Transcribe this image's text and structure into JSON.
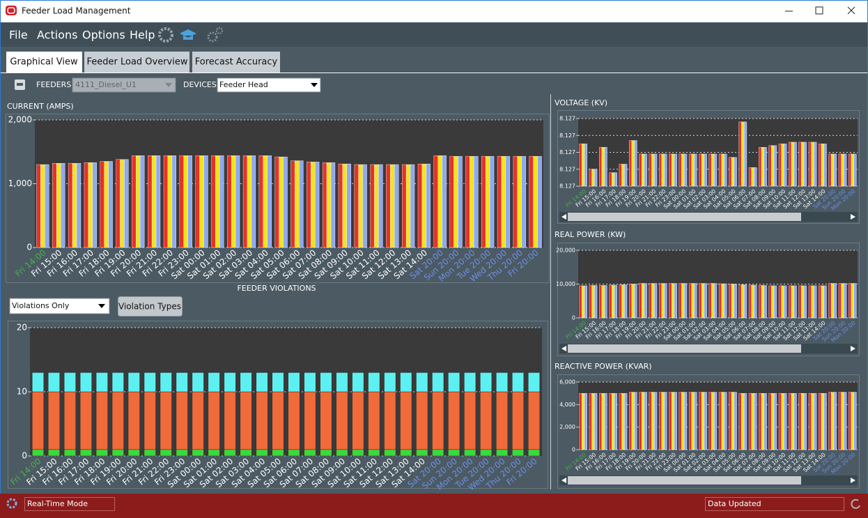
{
  "window": {
    "title": "Feeder Load Management"
  },
  "menu": [
    "File",
    "Actions",
    "Options",
    "Help"
  ],
  "tabs": [
    "Graphical View",
    "Feeder Load Overview",
    "Forecast Accuracy"
  ],
  "toolbar": {
    "feeders_label": "FEEDERS:",
    "feeder": "4111_Diesel_U1",
    "devices_label": "DEVICES:",
    "device": "Feeder Head"
  },
  "violations": {
    "filter": "Violations Only",
    "button": "Violation Types"
  },
  "status": {
    "mode": "Real-Time Mode",
    "message": "Data Updated"
  },
  "chart_data": [
    {
      "type": "bar",
      "title": "CURRENT (AMPS)",
      "grid": true,
      "categories": [
        "Fri 14:00",
        "Fri 15:00",
        "Fri 16:00",
        "Fri 17:00",
        "Fri 18:00",
        "Fri 19:00",
        "Fri 20:00",
        "Fri 21:00",
        "Fri 22:00",
        "Fri 23:00",
        "Sat 00:00",
        "Sat 01:00",
        "Sat 02:00",
        "Sat 03:00",
        "Sat 04:00",
        "Sat 05:00",
        "Sat 06:00",
        "Sat 07:00",
        "Sat 08:00",
        "Sat 09:00",
        "Sat 10:00",
        "Sat 11:00",
        "Sat 12:00",
        "Sat 13:00",
        "Sat 14:00",
        "Sat 20:00",
        "Sun 20:00",
        "Mon 20:00",
        "Tue 20:00",
        "Wed 20:00",
        "Thu 20:00",
        "Fri 20:00"
      ],
      "label_colors": [
        "#4caf50",
        "#fff",
        "#fff",
        "#fff",
        "#fff",
        "#fff",
        "#fff",
        "#fff",
        "#fff",
        "#fff",
        "#fff",
        "#fff",
        "#fff",
        "#fff",
        "#fff",
        "#fff",
        "#fff",
        "#fff",
        "#fff",
        "#fff",
        "#fff",
        "#fff",
        "#fff",
        "#fff",
        "#fff",
        "#6f8fe8",
        "#6f8fe8",
        "#6f8fe8",
        "#6f8fe8",
        "#6f8fe8",
        "#6f8fe8",
        "#6f8fe8"
      ],
      "ylim": [
        0,
        2000
      ],
      "yticks": [
        0,
        {
          "value": 1000,
          "label": "1,000"
        },
        {
          "value": 2000,
          "label": "2,000"
        }
      ],
      "series": [
        {
          "color": "#e8302a",
          "values": [
            1300,
            1320,
            1320,
            1330,
            1350,
            1380,
            1440,
            1440,
            1440,
            1440,
            1440,
            1440,
            1440,
            1440,
            1440,
            1420,
            1360,
            1340,
            1330,
            1310,
            1300,
            1300,
            1300,
            1300,
            1310,
            1440,
            1430,
            1430,
            1430,
            1430,
            1430,
            1430
          ]
        },
        {
          "color": "#f2e51c",
          "values": [
            1300,
            1320,
            1320,
            1330,
            1350,
            1380,
            1440,
            1440,
            1440,
            1440,
            1440,
            1440,
            1440,
            1440,
            1440,
            1420,
            1360,
            1340,
            1330,
            1310,
            1300,
            1300,
            1300,
            1300,
            1310,
            1440,
            1430,
            1430,
            1430,
            1430,
            1430,
            1430
          ]
        },
        {
          "color": "#8fa8f0",
          "values": [
            1300,
            1320,
            1320,
            1330,
            1350,
            1380,
            1440,
            1440,
            1440,
            1440,
            1440,
            1440,
            1440,
            1440,
            1440,
            1420,
            1360,
            1340,
            1330,
            1310,
            1300,
            1300,
            1300,
            1300,
            1310,
            1440,
            1430,
            1430,
            1430,
            1430,
            1430,
            1430
          ]
        }
      ]
    },
    {
      "type": "bar",
      "stacked": true,
      "title": "FEEDER VIOLATIONS",
      "grid": true,
      "categories": [
        "Fri 14:00",
        "Fri 15:00",
        "Fri 16:00",
        "Fri 17:00",
        "Fri 18:00",
        "Fri 19:00",
        "Fri 20:00",
        "Fri 21:00",
        "Fri 22:00",
        "Fri 23:00",
        "Sat 00:00",
        "Sat 01:00",
        "Sat 02:00",
        "Sat 03:00",
        "Sat 04:00",
        "Sat 05:00",
        "Sat 06:00",
        "Sat 07:00",
        "Sat 08:00",
        "Sat 09:00",
        "Sat 10:00",
        "Sat 11:00",
        "Sat 12:00",
        "Sat 13:00",
        "Sat 14:00",
        "Sat 20:00",
        "Sun 20:00",
        "Mon 20:00",
        "Tue 20:00",
        "Wed 20:00",
        "Thu 20:00",
        "Fri 20:00"
      ],
      "label_colors": [
        "#4caf50",
        "#fff",
        "#fff",
        "#fff",
        "#fff",
        "#fff",
        "#fff",
        "#fff",
        "#fff",
        "#fff",
        "#fff",
        "#fff",
        "#fff",
        "#fff",
        "#fff",
        "#fff",
        "#fff",
        "#fff",
        "#fff",
        "#fff",
        "#fff",
        "#fff",
        "#fff",
        "#fff",
        "#fff",
        "#6f8fe8",
        "#6f8fe8",
        "#6f8fe8",
        "#6f8fe8",
        "#6f8fe8",
        "#6f8fe8",
        "#6f8fe8"
      ],
      "ylim": [
        0,
        20
      ],
      "yticks": [
        0,
        10,
        20
      ],
      "series": [
        {
          "color": "#3cd83c",
          "values": [
            1,
            1,
            1,
            1,
            1,
            1,
            1,
            1,
            1,
            1,
            1,
            1,
            1,
            1,
            1,
            1,
            1,
            1,
            1,
            1,
            1,
            1,
            1,
            1,
            1,
            1,
            1,
            1,
            1,
            1,
            1,
            1
          ]
        },
        {
          "color": "#f06a3a",
          "values": [
            9,
            9,
            9,
            9,
            9,
            9,
            9,
            9,
            9,
            9,
            9,
            9,
            9,
            9,
            9,
            9,
            9,
            9,
            9,
            9,
            9,
            9,
            9,
            9,
            9,
            9,
            9,
            9,
            9,
            9,
            9,
            9
          ]
        },
        {
          "color": "#5ef0f0",
          "values": [
            3,
            3,
            3,
            3,
            3,
            3,
            3,
            3,
            3,
            3,
            3,
            3,
            3,
            3,
            3,
            3,
            3,
            3,
            3,
            3,
            3,
            3,
            3,
            3,
            3,
            3,
            3,
            3,
            3,
            3,
            3,
            3
          ]
        }
      ]
    },
    {
      "type": "bar",
      "title": "VOLTAGE (KV)",
      "grid": true,
      "categories": [
        "Fri 14:00",
        "Fri 15:00",
        "Fri 16:00",
        "Fri 17:00",
        "Fri 18:00",
        "Fri 19:00",
        "Fri 20:00",
        "Fri 21:00",
        "Fri 22:00",
        "Fri 23:00",
        "Sat 00:00",
        "Sat 01:00",
        "Sat 02:00",
        "Sat 03:00",
        "Sat 04:00",
        "Sat 05:00",
        "Sat 06:00",
        "Sat 07:00",
        "Sat 08:00",
        "Sat 09:00",
        "Sat 10:00",
        "Sat 11:00",
        "Sat 12:00",
        "Sat 13:00",
        "Sat 14:00",
        "Sat 20:00",
        "Sun 20:00",
        "Mon 20:00"
      ],
      "label_colors": [
        "#4caf50",
        "#fff",
        "#fff",
        "#fff",
        "#fff",
        "#fff",
        "#fff",
        "#fff",
        "#fff",
        "#fff",
        "#fff",
        "#fff",
        "#fff",
        "#fff",
        "#fff",
        "#fff",
        "#fff",
        "#fff",
        "#fff",
        "#fff",
        "#fff",
        "#fff",
        "#fff",
        "#fff",
        "#fff",
        "#6f8fe8",
        "#6f8fe8",
        "#6f8fe8"
      ],
      "ylim": [
        8.1268,
        8.1272
      ],
      "yticks": [
        {
          "value": 8.1268,
          "label": "8.127"
        },
        {
          "value": 8.1269,
          "label": "8.127"
        },
        8.127,
        {
          "value": 8.1271,
          "label": "8.127"
        },
        {
          "value": 8.1272,
          "label": "8.127"
        }
      ],
      "series": [
        {
          "color": "#e8302a",
          "values": [
            8.12705,
            8.1269,
            8.12703,
            8.12688,
            8.12693,
            8.12707,
            8.12699,
            8.12699,
            8.12699,
            8.12699,
            8.12699,
            8.12699,
            8.12699,
            8.12699,
            8.12699,
            8.12697,
            8.12718,
            8.12691,
            8.12703,
            8.12704,
            8.12705,
            8.12706,
            8.12706,
            8.12706,
            8.12705,
            8.12699,
            8.12699,
            8.12699
          ]
        },
        {
          "color": "#f2e51c",
          "values": [
            8.12705,
            8.1269,
            8.12703,
            8.12688,
            8.12693,
            8.12707,
            8.12699,
            8.12699,
            8.12699,
            8.12699,
            8.12699,
            8.12699,
            8.12699,
            8.12699,
            8.12699,
            8.12697,
            8.12718,
            8.12691,
            8.12703,
            8.12704,
            8.12705,
            8.12706,
            8.12706,
            8.12706,
            8.12705,
            8.12699,
            8.12699,
            8.12699
          ]
        },
        {
          "color": "#8fa8f0",
          "values": [
            8.12705,
            8.1269,
            8.12703,
            8.12688,
            8.12693,
            8.12707,
            8.12699,
            8.12699,
            8.12699,
            8.12699,
            8.12699,
            8.12699,
            8.12699,
            8.12699,
            8.12699,
            8.12697,
            8.12718,
            8.12691,
            8.12703,
            8.12704,
            8.12705,
            8.12706,
            8.12706,
            8.12706,
            8.12705,
            8.12699,
            8.12699,
            8.12699
          ]
        }
      ]
    },
    {
      "type": "bar",
      "title": "REAL POWER (KW)",
      "grid": true,
      "categories": [
        "Fri 14:00",
        "Fri 15:00",
        "Fri 16:00",
        "Fri 17:00",
        "Fri 18:00",
        "Fri 19:00",
        "Fri 20:00",
        "Fri 21:00",
        "Fri 22:00",
        "Fri 23:00",
        "Sat 00:00",
        "Sat 01:00",
        "Sat 02:00",
        "Sat 03:00",
        "Sat 04:00",
        "Sat 05:00",
        "Sat 06:00",
        "Sat 07:00",
        "Sat 08:00",
        "Sat 09:00",
        "Sat 10:00",
        "Sat 11:00",
        "Sat 12:00",
        "Sat 13:00",
        "Sat 14:00",
        "Sat 20:00",
        "Sun 20:00",
        "Mon 20:00"
      ],
      "label_colors": [
        "#4caf50",
        "#fff",
        "#fff",
        "#fff",
        "#fff",
        "#fff",
        "#fff",
        "#fff",
        "#fff",
        "#fff",
        "#fff",
        "#fff",
        "#fff",
        "#fff",
        "#fff",
        "#fff",
        "#fff",
        "#fff",
        "#fff",
        "#fff",
        "#fff",
        "#fff",
        "#fff",
        "#fff",
        "#fff",
        "#6f8fe8",
        "#6f8fe8",
        "#6f8fe8"
      ],
      "ylim": [
        0,
        20000
      ],
      "yticks": [
        0,
        {
          "value": 10000,
          "label": "10,000"
        },
        {
          "value": 20000,
          "label": "20,000"
        }
      ],
      "series": [
        {
          "color": "#e8302a",
          "values": [
            9500,
            9600,
            9600,
            9700,
            9800,
            10000,
            10200,
            10200,
            10200,
            10200,
            10200,
            10200,
            10200,
            10200,
            10100,
            10000,
            9800,
            9700,
            9600,
            9500,
            9500,
            9500,
            9500,
            9500,
            9500,
            10200,
            10200,
            10200
          ]
        },
        {
          "color": "#f2e51c",
          "values": [
            9500,
            9600,
            9600,
            9700,
            9800,
            10000,
            10200,
            10200,
            10200,
            10200,
            10200,
            10200,
            10200,
            10200,
            10100,
            10000,
            9800,
            9700,
            9600,
            9500,
            9500,
            9500,
            9500,
            9500,
            9500,
            10200,
            10200,
            10200
          ]
        },
        {
          "color": "#8fa8f0",
          "values": [
            9500,
            9600,
            9600,
            9700,
            9800,
            10000,
            10200,
            10200,
            10200,
            10200,
            10200,
            10200,
            10200,
            10200,
            10100,
            10000,
            9800,
            9700,
            9600,
            9500,
            9500,
            9500,
            9500,
            9500,
            9500,
            10200,
            10200,
            10200
          ]
        }
      ]
    },
    {
      "type": "bar",
      "title": "REACTIVE POWER (KVAR)",
      "grid": true,
      "categories": [
        "Fri 14:00",
        "Fri 15:00",
        "Fri 16:00",
        "Fri 17:00",
        "Fri 18:00",
        "Fri 19:00",
        "Fri 20:00",
        "Fri 21:00",
        "Fri 22:00",
        "Fri 23:00",
        "Sat 00:00",
        "Sat 01:00",
        "Sat 02:00",
        "Sat 03:00",
        "Sat 04:00",
        "Sat 05:00",
        "Sat 06:00",
        "Sat 07:00",
        "Sat 08:00",
        "Sat 09:00",
        "Sat 10:00",
        "Sat 11:00",
        "Sat 12:00",
        "Sat 13:00",
        "Sat 14:00",
        "Sat 20:00",
        "Sun 20:00",
        "Mon 20:00"
      ],
      "label_colors": [
        "#4caf50",
        "#fff",
        "#fff",
        "#fff",
        "#fff",
        "#fff",
        "#fff",
        "#fff",
        "#fff",
        "#fff",
        "#fff",
        "#fff",
        "#fff",
        "#fff",
        "#fff",
        "#fff",
        "#fff",
        "#fff",
        "#fff",
        "#fff",
        "#fff",
        "#fff",
        "#fff",
        "#fff",
        "#fff",
        "#6f8fe8",
        "#6f8fe8",
        "#6f8fe8"
      ],
      "ylim": [
        0,
        6000
      ],
      "yticks": [
        0,
        {
          "value": 2000,
          "label": "2,000"
        },
        {
          "value": 4000,
          "label": "4,000"
        },
        {
          "value": 6000,
          "label": "6,000"
        }
      ],
      "series": [
        {
          "color": "#e8302a",
          "values": [
            5000,
            5000,
            5000,
            5000,
            5000,
            5100,
            5100,
            5100,
            5100,
            5100,
            5100,
            5100,
            5100,
            5100,
            5100,
            5100,
            5000,
            5000,
            5000,
            5000,
            5000,
            5000,
            5000,
            5000,
            5000,
            5100,
            5100,
            5100
          ]
        },
        {
          "color": "#f2e51c",
          "values": [
            5000,
            5000,
            5000,
            5000,
            5000,
            5100,
            5100,
            5100,
            5100,
            5100,
            5100,
            5100,
            5100,
            5100,
            5100,
            5100,
            5000,
            5000,
            5000,
            5000,
            5000,
            5000,
            5000,
            5000,
            5000,
            5100,
            5100,
            5100
          ]
        },
        {
          "color": "#8fa8f0",
          "values": [
            5000,
            5000,
            5000,
            5000,
            5000,
            5100,
            5100,
            5100,
            5100,
            5100,
            5100,
            5100,
            5100,
            5100,
            5100,
            5100,
            5000,
            5000,
            5000,
            5000,
            5000,
            5000,
            5000,
            5000,
            5000,
            5100,
            5100,
            5100
          ]
        }
      ]
    }
  ]
}
